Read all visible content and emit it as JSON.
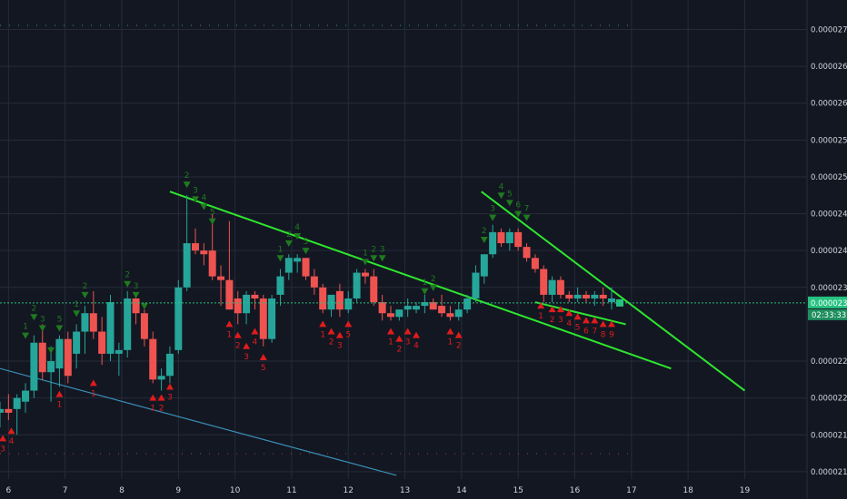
{
  "colors": {
    "background": "#131722",
    "grid": "#262b3a",
    "up": "#26a69a",
    "down": "#ef5350",
    "trendline": "#2ee62e",
    "support_line": "#3a8fb7",
    "price_line": "#26c281",
    "buy_marker": "#1f7a1f",
    "sell_marker": "#e01c1c",
    "label_bg": "#26c281"
  },
  "chart_data": {
    "type": "candlestick",
    "title": "",
    "xlabel": "",
    "ylabel": "",
    "grid": true,
    "x_range": [
      5.85,
      20.1
    ],
    "y_range": [
      2.09e-05,
      2.74e-05
    ],
    "x_ticks": [
      {
        "x": 6,
        "label": "6"
      },
      {
        "x": 7,
        "label": "7"
      },
      {
        "x": 8,
        "label": "8"
      },
      {
        "x": 9,
        "label": "9"
      },
      {
        "x": 10,
        "label": "10"
      },
      {
        "x": 11,
        "label": "11"
      },
      {
        "x": 12,
        "label": "12"
      },
      {
        "x": 13,
        "label": "13"
      },
      {
        "x": 14,
        "label": "14"
      },
      {
        "x": 15,
        "label": "15"
      },
      {
        "x": 16,
        "label": "16"
      },
      {
        "x": 17,
        "label": "17"
      },
      {
        "x": 18,
        "label": "18"
      },
      {
        "x": 19,
        "label": "19"
      }
    ],
    "y_ticks": [
      {
        "v": 2.7e-05,
        "label": "0.00002700"
      },
      {
        "v": 2.65e-05,
        "label": "0.00002650"
      },
      {
        "v": 2.6e-05,
        "label": "0.00002600"
      },
      {
        "v": 2.55e-05,
        "label": "0.00002550"
      },
      {
        "v": 2.5e-05,
        "label": "0.00002500"
      },
      {
        "v": 2.45e-05,
        "label": "0.00002450"
      },
      {
        "v": 2.4e-05,
        "label": "0.00002400"
      },
      {
        "v": 2.35e-05,
        "label": "0.00002350"
      },
      {
        "v": 2.25e-05,
        "label": "0.00002250"
      },
      {
        "v": 2.2e-05,
        "label": "0.00002200"
      },
      {
        "v": 2.15e-05,
        "label": "0.00002150"
      },
      {
        "v": 2.1e-05,
        "label": "0.00002100"
      }
    ],
    "current_price": 2.329e-05,
    "current_price_label": "0.00002329",
    "countdown_label": "02:33:33",
    "candles": [
      {
        "x": 5.85,
        "o": 2.18e-05,
        "h": 2.195e-05,
        "l": 2.16e-05,
        "c": 2.185e-05
      },
      {
        "x": 6.0,
        "o": 2.185e-05,
        "h": 2.205e-05,
        "l": 2.17e-05,
        "c": 2.18e-05
      },
      {
        "x": 6.15,
        "o": 2.185e-05,
        "h": 2.205e-05,
        "l": 2.15e-05,
        "c": 2.2e-05
      },
      {
        "x": 6.3,
        "o": 2.195e-05,
        "h": 2.22e-05,
        "l": 2.18e-05,
        "c": 2.21e-05
      },
      {
        "x": 6.45,
        "o": 2.21e-05,
        "h": 2.285e-05,
        "l": 2.2e-05,
        "c": 2.275e-05
      },
      {
        "x": 6.6,
        "o": 2.275e-05,
        "h": 2.3e-05,
        "l": 2.225e-05,
        "c": 2.235e-05
      },
      {
        "x": 6.75,
        "o": 2.235e-05,
        "h": 2.27e-05,
        "l": 2.195e-05,
        "c": 2.25e-05
      },
      {
        "x": 6.9,
        "o": 2.24e-05,
        "h": 2.285e-05,
        "l": 2.215e-05,
        "c": 2.28e-05
      },
      {
        "x": 7.05,
        "o": 2.28e-05,
        "h": 2.29e-05,
        "l": 2.22e-05,
        "c": 2.23e-05
      },
      {
        "x": 7.2,
        "o": 2.26e-05,
        "h": 2.3e-05,
        "l": 2.24e-05,
        "c": 2.29e-05
      },
      {
        "x": 7.35,
        "o": 2.29e-05,
        "h": 2.325e-05,
        "l": 2.26e-05,
        "c": 2.315e-05
      },
      {
        "x": 7.5,
        "o": 2.315e-05,
        "h": 2.345e-05,
        "l": 2.28e-05,
        "c": 2.29e-05
      },
      {
        "x": 7.65,
        "o": 2.29e-05,
        "h": 2.31e-05,
        "l": 2.245e-05,
        "c": 2.26e-05
      },
      {
        "x": 7.8,
        "o": 2.26e-05,
        "h": 2.34e-05,
        "l": 2.25e-05,
        "c": 2.33e-05
      },
      {
        "x": 7.95,
        "o": 2.26e-05,
        "h": 2.275e-05,
        "l": 2.23e-05,
        "c": 2.265e-05
      },
      {
        "x": 8.1,
        "o": 2.265e-05,
        "h": 2.345e-05,
        "l": 2.255e-05,
        "c": 2.335e-05
      },
      {
        "x": 8.25,
        "o": 2.335e-05,
        "h": 2.34e-05,
        "l": 2.3e-05,
        "c": 2.315e-05
      },
      {
        "x": 8.4,
        "o": 2.315e-05,
        "h": 2.32e-05,
        "l": 2.27e-05,
        "c": 2.28e-05
      },
      {
        "x": 8.55,
        "o": 2.28e-05,
        "h": 2.29e-05,
        "l": 2.22e-05,
        "c": 2.225e-05
      },
      {
        "x": 8.7,
        "o": 2.225e-05,
        "h": 2.24e-05,
        "l": 2.21e-05,
        "c": 2.23e-05
      },
      {
        "x": 8.85,
        "o": 2.23e-05,
        "h": 2.27e-05,
        "l": 2.22e-05,
        "c": 2.26e-05
      },
      {
        "x": 9.0,
        "o": 2.265e-05,
        "h": 2.36e-05,
        "l": 2.26e-05,
        "c": 2.35e-05
      },
      {
        "x": 9.15,
        "o": 2.35e-05,
        "h": 2.475e-05,
        "l": 2.345e-05,
        "c": 2.41e-05
      },
      {
        "x": 9.3,
        "o": 2.41e-05,
        "h": 2.43e-05,
        "l": 2.395e-05,
        "c": 2.4e-05
      },
      {
        "x": 9.45,
        "o": 2.4e-05,
        "h": 2.41e-05,
        "l": 2.38e-05,
        "c": 2.395e-05
      },
      {
        "x": 9.6,
        "o": 2.4e-05,
        "h": 2.45e-05,
        "l": 2.36e-05,
        "c": 2.365e-05
      },
      {
        "x": 9.75,
        "o": 2.365e-05,
        "h": 2.38e-05,
        "l": 2.325e-05,
        "c": 2.36e-05
      },
      {
        "x": 9.9,
        "o": 2.36e-05,
        "h": 2.44e-05,
        "l": 2.32e-05,
        "c": 2.32e-05
      },
      {
        "x": 10.05,
        "o": 2.335e-05,
        "h": 2.345e-05,
        "l": 2.3e-05,
        "c": 2.315e-05
      },
      {
        "x": 10.2,
        "o": 2.315e-05,
        "h": 2.345e-05,
        "l": 2.3e-05,
        "c": 2.34e-05
      },
      {
        "x": 10.35,
        "o": 2.34e-05,
        "h": 2.345e-05,
        "l": 2.32e-05,
        "c": 2.335e-05
      },
      {
        "x": 10.5,
        "o": 2.335e-05,
        "h": 2.34e-05,
        "l": 2.27e-05,
        "c": 2.28e-05
      },
      {
        "x": 10.65,
        "o": 2.28e-05,
        "h": 2.34e-05,
        "l": 2.275e-05,
        "c": 2.335e-05
      },
      {
        "x": 10.8,
        "o": 2.34e-05,
        "h": 2.375e-05,
        "l": 2.325e-05,
        "c": 2.365e-05
      },
      {
        "x": 10.95,
        "o": 2.37e-05,
        "h": 2.395e-05,
        "l": 2.36e-05,
        "c": 2.39e-05
      },
      {
        "x": 11.1,
        "o": 2.385e-05,
        "h": 2.395e-05,
        "l": 2.37e-05,
        "c": 2.39e-05
      },
      {
        "x": 11.25,
        "o": 2.39e-05,
        "h": 2.39e-05,
        "l": 2.36e-05,
        "c": 2.365e-05
      },
      {
        "x": 11.4,
        "o": 2.365e-05,
        "h": 2.375e-05,
        "l": 2.34e-05,
        "c": 2.35e-05
      },
      {
        "x": 11.55,
        "o": 2.35e-05,
        "h": 2.355e-05,
        "l": 2.315e-05,
        "c": 2.32e-05
      },
      {
        "x": 11.7,
        "o": 2.32e-05,
        "h": 2.34e-05,
        "l": 2.31e-05,
        "c": 2.34e-05
      },
      {
        "x": 11.85,
        "o": 2.345e-05,
        "h": 2.355e-05,
        "l": 2.31e-05,
        "c": 2.32e-05
      },
      {
        "x": 12.0,
        "o": 2.32e-05,
        "h": 2.345e-05,
        "l": 2.315e-05,
        "c": 2.335e-05
      },
      {
        "x": 12.15,
        "o": 2.335e-05,
        "h": 2.375e-05,
        "l": 2.33e-05,
        "c": 2.37e-05
      },
      {
        "x": 12.3,
        "o": 2.37e-05,
        "h": 2.375e-05,
        "l": 2.355e-05,
        "c": 2.365e-05
      },
      {
        "x": 12.45,
        "o": 2.365e-05,
        "h": 2.375e-05,
        "l": 2.325e-05,
        "c": 2.33e-05
      },
      {
        "x": 12.6,
        "o": 2.33e-05,
        "h": 2.34e-05,
        "l": 2.305e-05,
        "c": 2.315e-05
      },
      {
        "x": 12.75,
        "o": 2.315e-05,
        "h": 2.325e-05,
        "l": 2.305e-05,
        "c": 2.31e-05
      },
      {
        "x": 12.9,
        "o": 2.31e-05,
        "h": 2.32e-05,
        "l": 2.305e-05,
        "c": 2.32e-05
      },
      {
        "x": 13.05,
        "o": 2.32e-05,
        "h": 2.335e-05,
        "l": 2.31e-05,
        "c": 2.325e-05
      },
      {
        "x": 13.2,
        "o": 2.32e-05,
        "h": 2.33e-05,
        "l": 2.315e-05,
        "c": 2.325e-05
      },
      {
        "x": 13.35,
        "o": 2.325e-05,
        "h": 2.34e-05,
        "l": 2.315e-05,
        "c": 2.33e-05
      },
      {
        "x": 13.5,
        "o": 2.33e-05,
        "h": 2.335e-05,
        "l": 2.32e-05,
        "c": 2.32e-05
      },
      {
        "x": 13.65,
        "o": 2.325e-05,
        "h": 2.34e-05,
        "l": 2.31e-05,
        "c": 2.315e-05
      },
      {
        "x": 13.8,
        "o": 2.315e-05,
        "h": 2.325e-05,
        "l": 2.305e-05,
        "c": 2.31e-05
      },
      {
        "x": 13.95,
        "o": 2.31e-05,
        "h": 2.33e-05,
        "l": 2.305e-05,
        "c": 2.32e-05
      },
      {
        "x": 14.1,
        "o": 2.32e-05,
        "h": 2.34e-05,
        "l": 2.315e-05,
        "c": 2.335e-05
      },
      {
        "x": 14.25,
        "o": 2.335e-05,
        "h": 2.38e-05,
        "l": 2.33e-05,
        "c": 2.37e-05
      },
      {
        "x": 14.4,
        "o": 2.365e-05,
        "h": 2.395e-05,
        "l": 2.355e-05,
        "c": 2.395e-05
      },
      {
        "x": 14.55,
        "o": 2.395e-05,
        "h": 2.435e-05,
        "l": 2.39e-05,
        "c": 2.425e-05
      },
      {
        "x": 14.7,
        "o": 2.425e-05,
        "h": 2.43e-05,
        "l": 2.405e-05,
        "c": 2.41e-05
      },
      {
        "x": 14.85,
        "o": 2.41e-05,
        "h": 2.43e-05,
        "l": 2.4e-05,
        "c": 2.425e-05
      },
      {
        "x": 15.0,
        "o": 2.425e-05,
        "h": 2.43e-05,
        "l": 2.4e-05,
        "c": 2.405e-05
      },
      {
        "x": 15.15,
        "o": 2.405e-05,
        "h": 2.41e-05,
        "l": 2.385e-05,
        "c": 2.39e-05
      },
      {
        "x": 15.3,
        "o": 2.39e-05,
        "h": 2.395e-05,
        "l": 2.37e-05,
        "c": 2.375e-05
      },
      {
        "x": 15.45,
        "o": 2.375e-05,
        "h": 2.38e-05,
        "l": 2.33e-05,
        "c": 2.34e-05
      },
      {
        "x": 15.6,
        "o": 2.34e-05,
        "h": 2.365e-05,
        "l": 2.33e-05,
        "c": 2.36e-05
      },
      {
        "x": 15.75,
        "o": 2.36e-05,
        "h": 2.365e-05,
        "l": 2.335e-05,
        "c": 2.34e-05
      },
      {
        "x": 15.9,
        "o": 2.34e-05,
        "h": 2.345e-05,
        "l": 2.33e-05,
        "c": 2.335e-05
      },
      {
        "x": 16.05,
        "o": 2.335e-05,
        "h": 2.35e-05,
        "l": 2.33e-05,
        "c": 2.34e-05
      },
      {
        "x": 16.2,
        "o": 2.34e-05,
        "h": 2.345e-05,
        "l": 2.33e-05,
        "c": 2.335e-05
      },
      {
        "x": 16.35,
        "o": 2.335e-05,
        "h": 2.345e-05,
        "l": 2.325e-05,
        "c": 2.34e-05
      },
      {
        "x": 16.5,
        "o": 2.34e-05,
        "h": 2.35e-05,
        "l": 2.325e-05,
        "c": 2.335e-05
      },
      {
        "x": 16.65,
        "o": 2.33e-05,
        "h": 2.35e-05,
        "l": 2.32e-05,
        "c": 2.335e-05
      }
    ],
    "trendlines": [
      {
        "name": "upper-resistance-line",
        "x1": 8.85,
        "y1": 2.48e-05,
        "x2": 17.7,
        "y2": 2.24e-05
      },
      {
        "name": "upper-wedge-line",
        "x1": 14.35,
        "y1": 2.48e-05,
        "x2": 19.0,
        "y2": 2.21e-05
      },
      {
        "name": "lower-wedge-line",
        "x1": 15.3,
        "y1": 2.33e-05,
        "x2": 16.9,
        "y2": 2.3e-05
      },
      {
        "name": "support-line",
        "x1": 5.85,
        "y1": 2.24e-05,
        "x2": 12.85,
        "y2": 2.095e-05
      }
    ],
    "buy_markers": [
      {
        "x": 6.3,
        "v": 2.285e-05,
        "label": "1"
      },
      {
        "x": 6.45,
        "v": 2.31e-05,
        "label": "2"
      },
      {
        "x": 6.6,
        "v": 2.295e-05,
        "label": "3"
      },
      {
        "x": 6.75,
        "v": 2.265e-05,
        "label": ""
      },
      {
        "x": 6.9,
        "v": 2.295e-05,
        "label": "5"
      },
      {
        "x": 7.2,
        "v": 2.315e-05,
        "label": "1"
      },
      {
        "x": 7.35,
        "v": 2.34e-05,
        "label": "2"
      },
      {
        "x": 8.1,
        "v": 2.355e-05,
        "label": "2"
      },
      {
        "x": 8.25,
        "v": 2.34e-05,
        "label": "3"
      },
      {
        "x": 8.4,
        "v": 2.325e-05,
        "label": ""
      },
      {
        "x": 9.15,
        "v": 2.49e-05,
        "label": "2"
      },
      {
        "x": 9.3,
        "v": 2.47e-05,
        "label": "3"
      },
      {
        "x": 9.45,
        "v": 2.46e-05,
        "label": "4"
      },
      {
        "x": 9.6,
        "v": 2.44e-05,
        "label": "5"
      },
      {
        "x": 10.8,
        "v": 2.39e-05,
        "label": "1"
      },
      {
        "x": 10.95,
        "v": 2.41e-05,
        "label": "2"
      },
      {
        "x": 11.1,
        "v": 2.42e-05,
        "label": "4"
      },
      {
        "x": 11.25,
        "v": 2.4e-05,
        "label": "5"
      },
      {
        "x": 12.3,
        "v": 2.385e-05,
        "label": "1"
      },
      {
        "x": 12.45,
        "v": 2.39e-05,
        "label": "2"
      },
      {
        "x": 12.6,
        "v": 2.39e-05,
        "label": "3"
      },
      {
        "x": 13.35,
        "v": 2.345e-05,
        "label": "1"
      },
      {
        "x": 13.5,
        "v": 2.35e-05,
        "label": "2"
      },
      {
        "x": 14.4,
        "v": 2.415e-05,
        "label": "2"
      },
      {
        "x": 14.55,
        "v": 2.445e-05,
        "label": "3"
      },
      {
        "x": 14.7,
        "v": 2.475e-05,
        "label": "4"
      },
      {
        "x": 14.85,
        "v": 2.465e-05,
        "label": "5"
      },
      {
        "x": 15.0,
        "v": 2.45e-05,
        "label": "6"
      },
      {
        "x": 15.15,
        "v": 2.445e-05,
        "label": "7"
      }
    ],
    "sell_markers": [
      {
        "x": 5.9,
        "v": 2.145e-05,
        "label": "3"
      },
      {
        "x": 6.05,
        "v": 2.155e-05,
        "label": "4"
      },
      {
        "x": 6.9,
        "v": 2.205e-05,
        "label": "1"
      },
      {
        "x": 7.5,
        "v": 2.22e-05,
        "label": "1"
      },
      {
        "x": 8.55,
        "v": 2.2e-05,
        "label": "1"
      },
      {
        "x": 8.7,
        "v": 2.2e-05,
        "label": "2"
      },
      {
        "x": 8.85,
        "v": 2.215e-05,
        "label": "3"
      },
      {
        "x": 9.9,
        "v": 2.3e-05,
        "label": "1"
      },
      {
        "x": 10.05,
        "v": 2.285e-05,
        "label": "2"
      },
      {
        "x": 10.2,
        "v": 2.27e-05,
        "label": "3"
      },
      {
        "x": 10.35,
        "v": 2.29e-05,
        "label": "4"
      },
      {
        "x": 10.5,
        "v": 2.255e-05,
        "label": "5"
      },
      {
        "x": 11.55,
        "v": 2.3e-05,
        "label": "1"
      },
      {
        "x": 11.7,
        "v": 2.29e-05,
        "label": "2"
      },
      {
        "x": 11.85,
        "v": 2.285e-05,
        "label": "3"
      },
      {
        "x": 12.0,
        "v": 2.3e-05,
        "label": "5"
      },
      {
        "x": 12.75,
        "v": 2.29e-05,
        "label": "1"
      },
      {
        "x": 12.9,
        "v": 2.28e-05,
        "label": "2"
      },
      {
        "x": 13.05,
        "v": 2.29e-05,
        "label": "3"
      },
      {
        "x": 13.2,
        "v": 2.285e-05,
        "label": "4"
      },
      {
        "x": 13.8,
        "v": 2.29e-05,
        "label": "1"
      },
      {
        "x": 13.95,
        "v": 2.285e-05,
        "label": "2"
      },
      {
        "x": 15.4,
        "v": 2.325e-05,
        "label": "1"
      },
      {
        "x": 15.6,
        "v": 2.32e-05,
        "label": "2"
      },
      {
        "x": 15.75,
        "v": 2.32e-05,
        "label": "3"
      },
      {
        "x": 15.9,
        "v": 2.315e-05,
        "label": "4"
      },
      {
        "x": 16.05,
        "v": 2.31e-05,
        "label": "5"
      },
      {
        "x": 16.2,
        "v": 2.305e-05,
        "label": "6"
      },
      {
        "x": 16.35,
        "v": 2.305e-05,
        "label": "7"
      },
      {
        "x": 16.5,
        "v": 2.3e-05,
        "label": "8"
      },
      {
        "x": 16.65,
        "v": 2.3e-05,
        "label": "9"
      }
    ]
  }
}
